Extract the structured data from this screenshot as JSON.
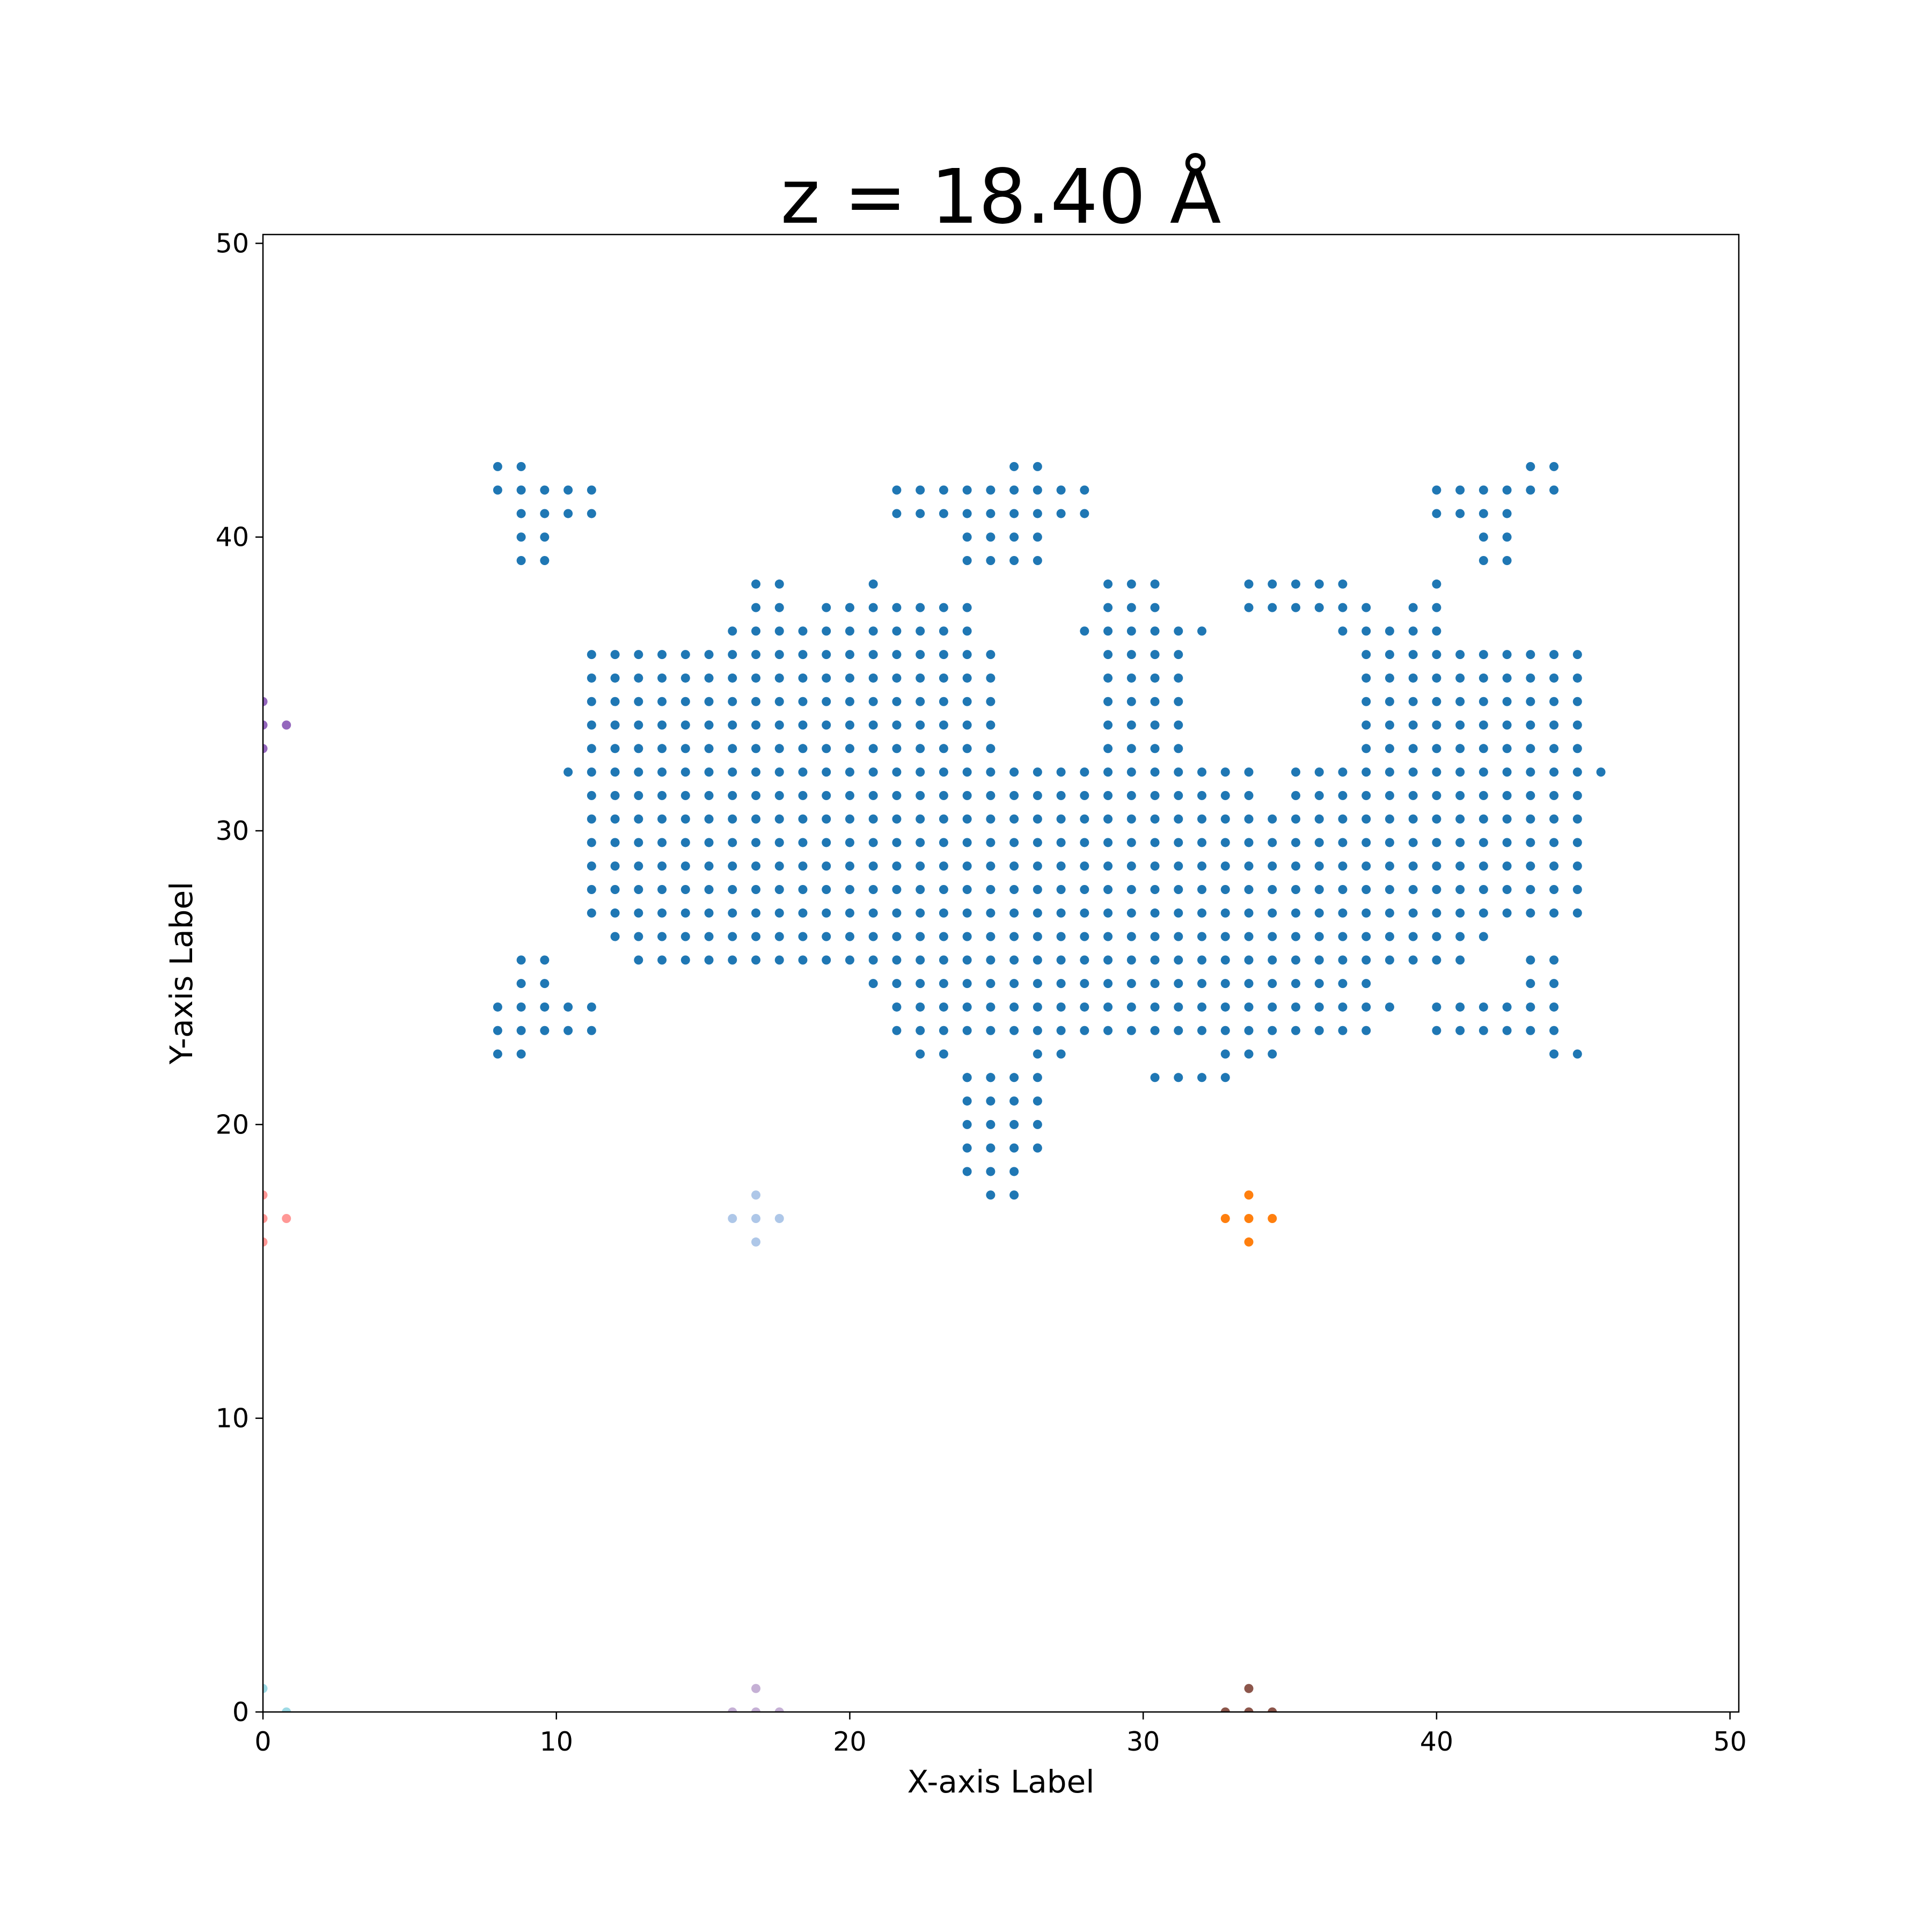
{
  "chart_data": {
    "type": "scatter",
    "title": "z = 18.40 Å",
    "xlabel": "X-axis Label",
    "ylabel": "Y-axis Label",
    "xlim": [
      0,
      50.3
    ],
    "ylim": [
      0,
      50.3
    ],
    "xticks": [
      0,
      10,
      20,
      30,
      40,
      50
    ],
    "yticks": [
      0,
      10,
      20,
      30,
      40,
      50
    ],
    "grid": false,
    "legend": "none",
    "step": 0.8,
    "series": [
      {
        "color": "#1f77b4",
        "grid_block": {
          "x_start": 8.0,
          "y_top": 42.4,
          "row_spans": [
            [
              [
                0,
                1
              ],
              [
                22,
                23
              ],
              [
                44,
                45
              ]
            ],
            [
              [
                0,
                4
              ],
              [
                17,
                25
              ],
              [
                40,
                45
              ]
            ],
            [
              [
                1,
                4
              ],
              [
                17,
                25
              ],
              [
                40,
                43
              ]
            ],
            [
              [
                1,
                2
              ],
              [
                20,
                23
              ],
              [
                42,
                43
              ]
            ],
            [
              [
                1,
                2
              ],
              [
                20,
                23
              ],
              [
                42,
                43
              ]
            ],
            [
              [
                11,
                12
              ],
              [
                16,
                16
              ],
              [
                26,
                28
              ],
              [
                32,
                36
              ],
              [
                40,
                40
              ]
            ],
            [
              [
                11,
                12
              ],
              [
                14,
                20
              ],
              [
                26,
                28
              ],
              [
                32,
                37
              ],
              [
                39,
                40
              ]
            ],
            [
              [
                10,
                20
              ],
              [
                25,
                30
              ],
              [
                36,
                40
              ]
            ],
            [
              [
                4,
                21
              ],
              [
                26,
                29
              ],
              [
                37,
                46
              ]
            ],
            [
              [
                4,
                21
              ],
              [
                26,
                29
              ],
              [
                37,
                46
              ]
            ],
            [
              [
                4,
                21
              ],
              [
                26,
                29
              ],
              [
                37,
                46
              ]
            ],
            [
              [
                4,
                21
              ],
              [
                26,
                29
              ],
              [
                37,
                46
              ]
            ],
            [
              [
                4,
                21
              ],
              [
                26,
                29
              ],
              [
                37,
                46
              ]
            ],
            [
              [
                3,
                23
              ],
              [
                24,
                32
              ],
              [
                34,
                47
              ]
            ],
            [
              [
                4,
                21
              ],
              [
                22,
                32
              ],
              [
                34,
                46
              ]
            ],
            [
              [
                4,
                46
              ]
            ],
            [
              [
                4,
                46
              ]
            ],
            [
              [
                4,
                46
              ]
            ],
            [
              [
                4,
                46
              ]
            ],
            [
              [
                4,
                46
              ]
            ],
            [
              [
                5,
                42
              ]
            ],
            [
              [
                1,
                2
              ],
              [
                6,
                41
              ],
              [
                44,
                45
              ]
            ],
            [
              [
                1,
                2
              ],
              [
                16,
                37
              ],
              [
                44,
                45
              ]
            ],
            [
              [
                0,
                4
              ],
              [
                17,
                38
              ],
              [
                40,
                45
              ]
            ],
            [
              [
                0,
                4
              ],
              [
                17,
                37
              ],
              [
                40,
                45
              ]
            ],
            [
              [
                0,
                1
              ],
              [
                18,
                19
              ],
              [
                23,
                24
              ],
              [
                31,
                33
              ],
              [
                45,
                46
              ]
            ],
            [
              [
                20,
                23
              ],
              [
                28,
                31
              ]
            ]
          ]
        },
        "points": [
          [
            24.0,
            21.6
          ],
          [
            24.8,
            21.6
          ],
          [
            24.0,
            20.8
          ],
          [
            24.8,
            20.8
          ],
          [
            25.6,
            20.8
          ],
          [
            26.4,
            20.8
          ],
          [
            24.0,
            20.0
          ],
          [
            24.8,
            20.0
          ],
          [
            25.6,
            20.0
          ],
          [
            26.4,
            20.0
          ],
          [
            24.0,
            19.2
          ],
          [
            24.8,
            19.2
          ],
          [
            25.6,
            19.2
          ],
          [
            26.4,
            19.2
          ],
          [
            24.0,
            18.4
          ],
          [
            24.8,
            18.4
          ],
          [
            25.6,
            18.4
          ],
          [
            24.8,
            17.6
          ],
          [
            25.6,
            17.6
          ]
        ]
      },
      {
        "color": "#ff7f0e",
        "points": [
          [
            33.6,
            17.6
          ],
          [
            32.8,
            16.8
          ],
          [
            33.6,
            16.8
          ],
          [
            34.4,
            16.8
          ],
          [
            33.6,
            16.0
          ]
        ]
      },
      {
        "color": "#aec7e8",
        "points": [
          [
            16.8,
            17.6
          ],
          [
            16.0,
            16.8
          ],
          [
            16.8,
            16.8
          ],
          [
            17.6,
            16.8
          ],
          [
            16.8,
            16.0
          ]
        ]
      },
      {
        "color": "#ff9896",
        "points": [
          [
            0,
            17.6
          ],
          [
            0,
            16.8
          ],
          [
            0.8,
            16.8
          ],
          [
            0,
            16.0
          ]
        ]
      },
      {
        "color": "#9467bd",
        "points": [
          [
            0,
            34.4
          ],
          [
            0,
            33.6
          ],
          [
            0.8,
            33.6
          ],
          [
            0,
            32.8
          ]
        ]
      },
      {
        "color": "#8c564b",
        "points": [
          [
            33.6,
            0.8
          ],
          [
            32.8,
            0
          ],
          [
            33.6,
            0
          ],
          [
            34.4,
            0
          ]
        ]
      },
      {
        "color": "#c5b0d5",
        "points": [
          [
            16.8,
            0.8
          ],
          [
            16.0,
            0
          ],
          [
            16.8,
            0
          ],
          [
            17.6,
            0
          ]
        ]
      },
      {
        "color": "#9edae5",
        "points": [
          [
            0,
            0.8
          ],
          [
            0.8,
            0
          ]
        ]
      }
    ]
  }
}
